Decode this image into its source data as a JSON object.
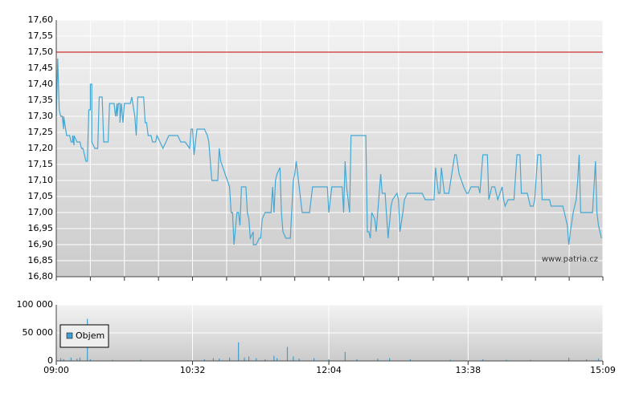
{
  "chart_data": [
    {
      "type": "line",
      "color": "#45a8d4",
      "xlim": [
        0,
        369
      ],
      "ylim": [
        16.8,
        17.6
      ],
      "yticks": [
        {
          "value": 16.8,
          "label": "16,80"
        },
        {
          "value": 16.85,
          "label": "16,85"
        },
        {
          "value": 16.9,
          "label": "16,90"
        },
        {
          "value": 16.95,
          "label": "16,95"
        },
        {
          "value": 17.0,
          "label": "17,00"
        },
        {
          "value": 17.05,
          "label": "17,05"
        },
        {
          "value": 17.1,
          "label": "17,10"
        },
        {
          "value": 17.15,
          "label": "17,15"
        },
        {
          "value": 17.2,
          "label": "17,20"
        },
        {
          "value": 17.25,
          "label": "17,25"
        },
        {
          "value": 17.3,
          "label": "17,30"
        },
        {
          "value": 17.35,
          "label": "17,35"
        },
        {
          "value": 17.4,
          "label": "17,40"
        },
        {
          "value": 17.45,
          "label": "17,45"
        },
        {
          "value": 17.5,
          "label": "17,50"
        },
        {
          "value": 17.55,
          "label": "17,55"
        },
        {
          "value": 17.6,
          "label": "17,60"
        }
      ],
      "grid": true,
      "reference_line": {
        "value": 17.5,
        "color": "#c00000"
      },
      "watermark": "www.patria.cz",
      "x": [
        0,
        1,
        2,
        3,
        4,
        5,
        5,
        7,
        9,
        10,
        11,
        11,
        12,
        12,
        14,
        16,
        17,
        18,
        20,
        21,
        22,
        23,
        23,
        24,
        24,
        26,
        28,
        29,
        31,
        32,
        35,
        36,
        39,
        40,
        41,
        41,
        42,
        43,
        43,
        44,
        45,
        46,
        50,
        51,
        53,
        54,
        55,
        59,
        60,
        61,
        62,
        64,
        65,
        67,
        68,
        70,
        72,
        74,
        76,
        82,
        84,
        87,
        90,
        91,
        92,
        93,
        94,
        95,
        100,
        102,
        103,
        105,
        109,
        110,
        111,
        114,
        117,
        118,
        119,
        120,
        122,
        123,
        124,
        125,
        128,
        129,
        130,
        131,
        133,
        133,
        135,
        137,
        138,
        139,
        141,
        145,
        146,
        147,
        148,
        149,
        151,
        152,
        153,
        155,
        158,
        160,
        161,
        162,
        164,
        166,
        171,
        173,
        183,
        184,
        186,
        193,
        194,
        195,
        196,
        198,
        199,
        209,
        210,
        211,
        212,
        213,
        215,
        216,
        217,
        219,
        220,
        222,
        224,
        226,
        227,
        230,
        231,
        232,
        234,
        235,
        237,
        247,
        249,
        255,
        256,
        258,
        259,
        260,
        262,
        265,
        267,
        269,
        270,
        272,
        275,
        277,
        278,
        280,
        285,
        286,
        288,
        291,
        292,
        294,
        296,
        298,
        301,
        302,
        303,
        305,
        309,
        311,
        313,
        314,
        318,
        320,
        322,
        323,
        325,
        327,
        328,
        333,
        334,
        342,
        343,
        345,
        346,
        347,
        349,
        351,
        352,
        353,
        354,
        362,
        364,
        365,
        366,
        368
      ],
      "values": [
        17.3,
        17.48,
        17.32,
        17.3,
        17.3,
        17.26,
        17.3,
        17.24,
        17.24,
        17.22,
        17.22,
        17.24,
        17.21,
        17.24,
        17.22,
        17.22,
        17.2,
        17.2,
        17.16,
        17.16,
        17.32,
        17.32,
        17.4,
        17.4,
        17.22,
        17.2,
        17.2,
        17.36,
        17.36,
        17.22,
        17.22,
        17.34,
        17.34,
        17.3,
        17.34,
        17.3,
        17.34,
        17.34,
        17.28,
        17.34,
        17.28,
        17.34,
        17.34,
        17.36,
        17.3,
        17.24,
        17.36,
        17.36,
        17.28,
        17.28,
        17.24,
        17.24,
        17.22,
        17.22,
        17.24,
        17.22,
        17.2,
        17.22,
        17.24,
        17.24,
        17.22,
        17.22,
        17.2,
        17.26,
        17.26,
        17.18,
        17.22,
        17.26,
        17.26,
        17.24,
        17.22,
        17.1,
        17.1,
        17.2,
        17.16,
        17.12,
        17.08,
        17.0,
        17.0,
        16.9,
        17.0,
        17.0,
        16.96,
        17.08,
        17.08,
        17.0,
        16.98,
        16.92,
        16.94,
        16.9,
        16.9,
        16.92,
        16.92,
        16.98,
        17.0,
        17.0,
        17.08,
        17.0,
        17.1,
        17.12,
        17.14,
        17.0,
        16.94,
        16.92,
        16.92,
        17.1,
        17.12,
        17.16,
        17.08,
        17.0,
        17.0,
        17.08,
        17.08,
        17.0,
        17.08,
        17.08,
        17.0,
        17.16,
        17.08,
        17.0,
        17.24,
        17.24,
        16.94,
        16.94,
        16.92,
        17.0,
        16.98,
        16.94,
        17.0,
        17.12,
        17.06,
        17.06,
        16.92,
        17.02,
        17.04,
        17.06,
        17.04,
        16.94,
        17.0,
        17.04,
        17.06,
        17.06,
        17.04,
        17.04,
        17.14,
        17.06,
        17.06,
        17.14,
        17.06,
        17.06,
        17.12,
        17.18,
        17.18,
        17.12,
        17.08,
        17.06,
        17.06,
        17.08,
        17.08,
        17.06,
        17.18,
        17.18,
        17.04,
        17.08,
        17.08,
        17.04,
        17.08,
        17.04,
        17.02,
        17.04,
        17.04,
        17.18,
        17.18,
        17.06,
        17.06,
        17.02,
        17.02,
        17.04,
        17.18,
        17.18,
        17.04,
        17.04,
        17.02,
        17.02,
        17.0,
        16.96,
        16.9,
        16.94,
        17.0,
        17.04,
        17.1,
        17.18,
        17.0,
        17.0,
        17.16,
        17.0,
        16.96,
        16.92
      ]
    },
    {
      "type": "bar",
      "xlim": [
        0,
        369
      ],
      "ylim": [
        0,
        100000
      ],
      "xticks": [
        {
          "value": 0,
          "label": "09:00"
        },
        {
          "value": 92,
          "label": "10:32"
        },
        {
          "value": 184,
          "label": "12:04"
        },
        {
          "value": 278,
          "label": "13:38"
        },
        {
          "value": 369,
          "label": "15:09"
        }
      ],
      "yticks": [
        0,
        {
          "value": 50000,
          "label": "50 000"
        },
        {
          "value": 100000,
          "label": "100 000"
        }
      ],
      "grid": true,
      "legend": "upper left",
      "series": [
        {
          "name": "Objem",
          "color": "#3f9fcf",
          "x": [
            3,
            5,
            10,
            14,
            16,
            21,
            23,
            38,
            57,
            100,
            106,
            110,
            117,
            123,
            127,
            130,
            135,
            141,
            147,
            149,
            156,
            160,
            164,
            174,
            184,
            195,
            203,
            217,
            225,
            239,
            266,
            288,
            304,
            320,
            346,
            358,
            366
          ],
          "values": [
            5000,
            3000,
            6000,
            4000,
            6000,
            75000,
            3000,
            2000,
            2000,
            3000,
            5000,
            4000,
            6000,
            33000,
            6000,
            8000,
            5000,
            3000,
            9000,
            5000,
            25000,
            8000,
            4000,
            5000,
            3000,
            16000,
            3000,
            4000,
            5000,
            3000,
            2000,
            3000,
            2000,
            2000,
            6000,
            3000,
            4000
          ]
        }
      ]
    }
  ]
}
